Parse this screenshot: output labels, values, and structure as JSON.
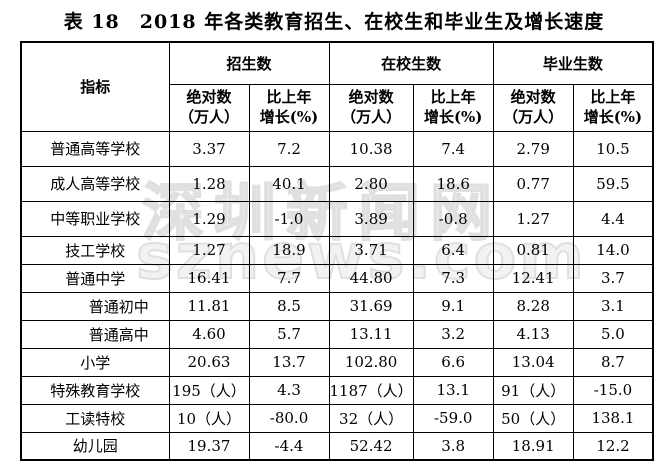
{
  "page": {
    "title": "表 18　2018 年各类教育招生、在校生和毕业生及增长速度"
  },
  "watermark": {
    "line1": "深圳新闻网",
    "line2": "sznews.com"
  },
  "table": {
    "indicator_header": "指标",
    "group_headers": [
      "招生数",
      "在校生数",
      "毕业生数"
    ],
    "sub_header_absolute": {
      "line1": "绝对数",
      "line2": "（万人）"
    },
    "sub_header_growth": {
      "line1": "比上年",
      "line2": "增长(%)"
    },
    "rows": [
      {
        "indicator": "普通高等学校",
        "indent": false,
        "values": [
          "3.37",
          "7.2",
          "10.38",
          "7.4",
          "2.79",
          "10.5"
        ]
      },
      {
        "indicator": "成人高等学校",
        "indent": false,
        "values": [
          "1.28",
          "40.1",
          "2.80",
          "18.6",
          "0.77",
          "59.5"
        ]
      },
      {
        "indicator": "中等职业学校",
        "indent": false,
        "values": [
          "1.29",
          "-1.0",
          "3.89",
          "-0.8",
          "1.27",
          "4.4"
        ]
      },
      {
        "indicator": "技工学校",
        "indent": false,
        "values": [
          "1.27",
          "18.9",
          "3.71",
          "6.4",
          "0.81",
          "14.0"
        ]
      },
      {
        "indicator": "普通中学",
        "indent": false,
        "values": [
          "16.41",
          "7.7",
          "44.80",
          "7.3",
          "12.41",
          "3.7"
        ]
      },
      {
        "indicator": "普通初中",
        "indent": true,
        "values": [
          "11.81",
          "8.5",
          "31.69",
          "9.1",
          "8.28",
          "3.1"
        ]
      },
      {
        "indicator": "普通高中",
        "indent": true,
        "values": [
          "4.60",
          "5.7",
          "13.11",
          "3.2",
          "4.13",
          "5.0"
        ]
      },
      {
        "indicator": "小学",
        "indent": false,
        "values": [
          "20.63",
          "13.7",
          "102.80",
          "6.6",
          "13.04",
          "8.7"
        ]
      },
      {
        "indicator": "特殊教育学校",
        "indent": false,
        "values": [
          "195（人）",
          "4.3",
          "1187（人）",
          "13.1",
          "91（人）",
          "-15.0"
        ]
      },
      {
        "indicator": "工读特校",
        "indent": false,
        "values": [
          "10（人）",
          "-80.0",
          "32（人）",
          "-59.0",
          "50（人）",
          "138.1"
        ]
      },
      {
        "indicator": "幼儿园",
        "indent": false,
        "values": [
          "19.37",
          "-4.4",
          "52.42",
          "3.8",
          "18.91",
          "12.2"
        ]
      }
    ]
  }
}
